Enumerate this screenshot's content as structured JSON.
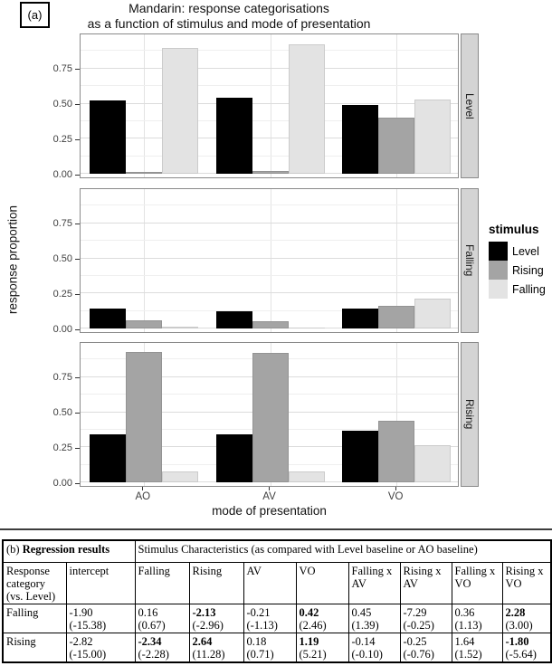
{
  "figure": {
    "label": "(a)"
  },
  "chart_data": {
    "type": "bar",
    "title": "Mandarin: response categorisations as a function of stimulus and mode of presentation",
    "title_lines": [
      "Mandarin: response categorisations",
      "as a function of stimulus and mode of presentation"
    ],
    "xlabel": "mode of presentation",
    "ylabel": "response proportion",
    "categories": [
      "AO",
      "AV",
      "VO"
    ],
    "stimuli": [
      "Level",
      "Rising",
      "Falling"
    ],
    "colors": {
      "Level": "#000000",
      "Rising": "#a4a4a4",
      "Falling": "#e3e3e3"
    },
    "ylim": [
      0,
      1
    ],
    "yticks": [
      0,
      0.25,
      0.5,
      0.75
    ],
    "ytick_labels": [
      "0.00",
      "0.25",
      "0.50",
      "0.75"
    ],
    "legend_title": "stimulus",
    "legend_position": "right",
    "grid": true,
    "facets": [
      {
        "label": "Level",
        "values": {
          "Level": [
            0.52,
            0.54,
            0.49
          ],
          "Rising": [
            0.01,
            0.02,
            0.4
          ],
          "Falling": [
            0.9,
            0.92,
            0.53
          ]
        }
      },
      {
        "label": "Falling",
        "values": {
          "Level": [
            0.14,
            0.12,
            0.145
          ],
          "Rising": [
            0.055,
            0.05,
            0.16
          ],
          "Falling": [
            0.012,
            0.005,
            0.21
          ]
        }
      },
      {
        "label": "Rising",
        "values": {
          "Level": [
            0.34,
            0.345,
            0.365
          ],
          "Rising": [
            0.93,
            0.92,
            0.44
          ],
          "Falling": [
            0.08,
            0.08,
            0.265
          ]
        }
      }
    ]
  },
  "table": {
    "label": "(b)",
    "title_left": "Regression results",
    "title_right": "Stimulus Characteristics (as compared with Level baseline or AO baseline)",
    "columns": [
      "Response category (vs. Level)",
      "intercept",
      "Falling",
      "Rising",
      "AV",
      "VO",
      "Falling x AV",
      "Rising x AV",
      "Falling x VO",
      "Rising x VO"
    ],
    "rows": [
      {
        "label": "Falling",
        "cells": [
          {
            "est": "-1.90",
            "t": "(-15.38)",
            "bold": false
          },
          {
            "est": "0.16",
            "t": "(0.67)",
            "bold": false
          },
          {
            "est": "-2.13",
            "t": "(-2.96)",
            "bold": true
          },
          {
            "est": "-0.21",
            "t": "(-1.13)",
            "bold": false
          },
          {
            "est": "0.42",
            "t": "(2.46)",
            "bold": true
          },
          {
            "est": "0.45",
            "t": "(1.39)",
            "bold": false
          },
          {
            "est": "-7.29",
            "t": "(-0.25)",
            "bold": false
          },
          {
            "est": "0.36",
            "t": "(1.13)",
            "bold": false
          },
          {
            "est": "2.28",
            "t": "(3.00)",
            "bold": true
          }
        ]
      },
      {
        "label": "Rising",
        "cells": [
          {
            "est": "-2.82",
            "t": "(-15.00)",
            "bold": false
          },
          {
            "est": "-2.34",
            "t": "(-2.28)",
            "bold": true
          },
          {
            "est": "2.64",
            "t": "(11.28)",
            "bold": true
          },
          {
            "est": "0.18",
            "t": "(0.71)",
            "bold": false
          },
          {
            "est": "1.19",
            "t": "(5.21)",
            "bold": true
          },
          {
            "est": "-0.14",
            "t": "(-0.10)",
            "bold": false
          },
          {
            "est": "-0.25",
            "t": "(-0.76)",
            "bold": false
          },
          {
            "est": "1.64",
            "t": "(1.52)",
            "bold": false
          },
          {
            "est": "-1.80",
            "t": "(-5.64)",
            "bold": true
          }
        ]
      }
    ]
  }
}
